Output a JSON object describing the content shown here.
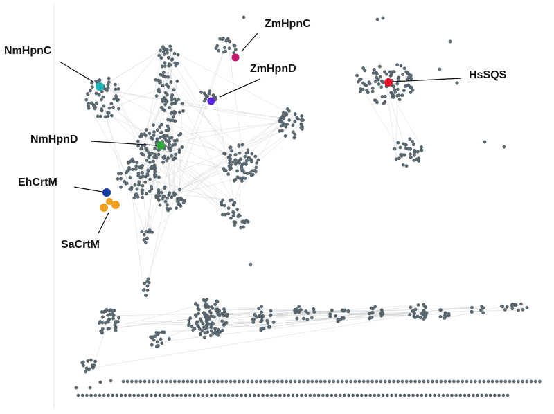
{
  "labels": [
    {
      "id": "nmhpnc",
      "text": "NmHpnC",
      "color": "#1ab5b5"
    },
    {
      "id": "zmhpnc",
      "text": "ZmHpnC",
      "color": "#c2186b"
    },
    {
      "id": "zmhpnd",
      "text": "ZmHpnD",
      "color": "#5a22e0"
    },
    {
      "id": "hssqs",
      "text": "HsSQS",
      "color": "#e8102a"
    },
    {
      "id": "nmhpnd",
      "text": "NmHpnD",
      "color": "#2eaa3a"
    },
    {
      "id": "ehcrtm",
      "text": "EhCrtM",
      "color": "#123a9e"
    },
    {
      "id": "sacrtm",
      "text": "SaCrtM",
      "color": "#f0a01e"
    }
  ],
  "colors": {
    "node": "#5c6b73",
    "edge": "#c9cdd0",
    "background": "#ffffff"
  }
}
